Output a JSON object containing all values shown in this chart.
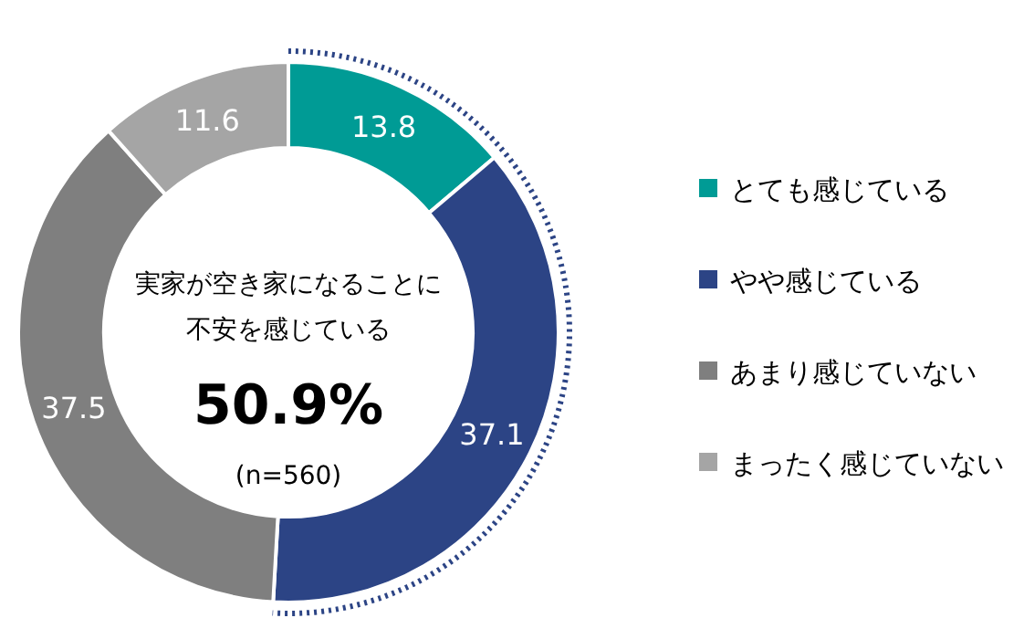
{
  "chart_data": {
    "type": "donut",
    "categories": [
      "とても感じている",
      "やや感じている",
      "あまり感じていない",
      "まったく感じていない"
    ],
    "values": [
      13.8,
      37.1,
      37.5,
      11.6
    ],
    "colors": [
      "#009b95",
      "#2c4485",
      "#7f7f7f",
      "#a5a5a5"
    ],
    "data_labels": true,
    "legend": "right",
    "annotations": [
      "実家が空き家になることに",
      "不安を感じている",
      "50.9%",
      "(n=560)"
    ]
  }
}
